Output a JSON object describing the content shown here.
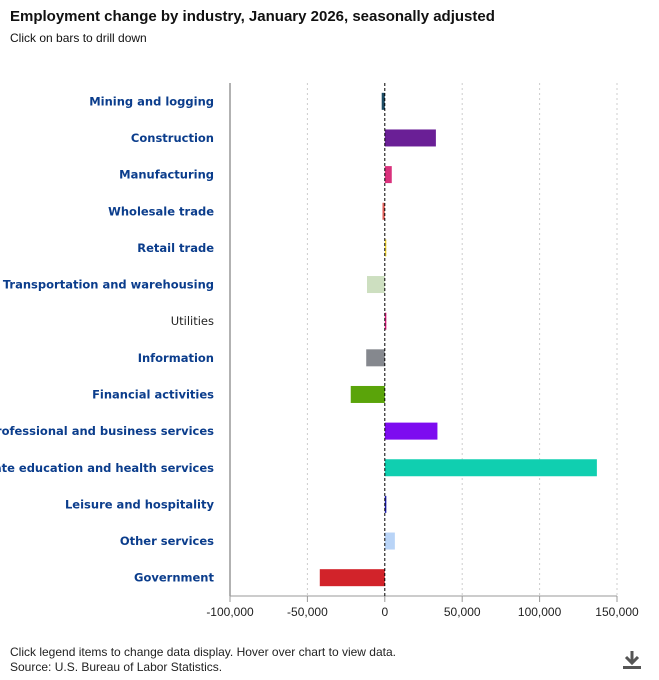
{
  "chart_data": {
    "type": "bar",
    "orientation": "horizontal",
    "title": "Employment change by industry, January 2026, seasonally adjusted",
    "subtitle": "Click on bars to drill down",
    "categories": [
      "Mining and logging",
      "Construction",
      "Manufacturing",
      "Wholesale trade",
      "Retail trade",
      "Transportation and warehousing",
      "Utilities",
      "Information",
      "Financial activities",
      "Professional and business services",
      "Private education and health services",
      "Leisure and hospitality",
      "Other services",
      "Government"
    ],
    "values": [
      -2000,
      33000,
      4500,
      -1500,
      1000,
      -11500,
      1000,
      -12000,
      -22000,
      34000,
      137000,
      1000,
      6500,
      -42000
    ],
    "colors": [
      "#1d4b63",
      "#6a1f96",
      "#d9317c",
      "#e0605a",
      "#f3d330",
      "#cddfc0",
      "#d81b7a",
      "#85888e",
      "#5aa40a",
      "#7d0cf0",
      "#10cfb0",
      "#1b1bab",
      "#b9d4f7",
      "#d2232a"
    ],
    "drilldown": [
      true,
      true,
      true,
      true,
      true,
      true,
      false,
      true,
      true,
      true,
      true,
      true,
      true,
      true
    ],
    "label_color": "#0b3d8c",
    "xlim": [
      -100000,
      150000
    ],
    "xticks": [
      "-100,000",
      "-50,000",
      "0",
      "50,000",
      "100,000",
      "150,000"
    ],
    "xtick_values": [
      -100000,
      -50000,
      0,
      50000,
      100000,
      150000
    ],
    "grid": true,
    "legend": "none"
  },
  "footer": {
    "note": "Click legend items to change data display. Hover over chart to view data.",
    "source": "Source: U.S. Bureau of Labor Statistics."
  },
  "icons": {
    "download": "download-icon"
  }
}
